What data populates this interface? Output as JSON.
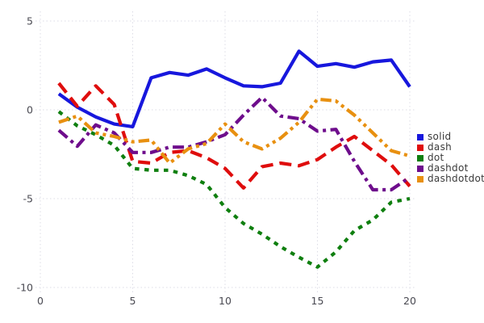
{
  "chart_data": {
    "type": "line",
    "title": "",
    "xlabel": "",
    "ylabel": "",
    "x": [
      1,
      2,
      3,
      4,
      5,
      6,
      7,
      8,
      9,
      10,
      11,
      12,
      13,
      14,
      15,
      16,
      17,
      18,
      19,
      20
    ],
    "series": [
      {
        "name": "solid",
        "color": "#1717dd",
        "dash": "solid",
        "values": [
          0.9,
          0.15,
          -0.4,
          -0.8,
          -0.95,
          1.8,
          2.1,
          1.95,
          2.3,
          1.8,
          1.35,
          1.3,
          1.5,
          3.3,
          2.45,
          2.6,
          2.4,
          2.7,
          2.8,
          1.3
        ]
      },
      {
        "name": "dash",
        "color": "#df0d0d",
        "dash": "dash",
        "values": [
          1.5,
          0.2,
          1.35,
          0.3,
          -2.9,
          -3.0,
          -2.4,
          -2.3,
          -2.7,
          -3.3,
          -4.4,
          -3.2,
          -3.0,
          -3.15,
          -2.8,
          -2.1,
          -1.5,
          -2.3,
          -3.1,
          -4.3
        ]
      },
      {
        "name": "dot",
        "color": "#0f7f0f",
        "dash": "dot",
        "values": [
          -0.1,
          -0.9,
          -1.4,
          -2.0,
          -3.3,
          -3.4,
          -3.4,
          -3.7,
          -4.2,
          -5.5,
          -6.4,
          -7.0,
          -7.7,
          -8.3,
          -8.85,
          -8.0,
          -6.8,
          -6.2,
          -5.2,
          -5.0
        ]
      },
      {
        "name": "dashdot",
        "color": "#6e0d8c",
        "dash": "dashdot",
        "values": [
          -1.15,
          -2.05,
          -0.85,
          -1.3,
          -2.4,
          -2.4,
          -2.1,
          -2.1,
          -1.8,
          -1.4,
          -0.3,
          0.7,
          -0.35,
          -0.5,
          -1.2,
          -1.1,
          -2.9,
          -4.5,
          -4.5,
          -3.8
        ]
      },
      {
        "name": "dashdotdot",
        "color": "#e89010",
        "dash": "dashdotdot",
        "values": [
          -0.7,
          -0.35,
          -1.3,
          -1.5,
          -1.8,
          -1.7,
          -3.0,
          -2.2,
          -1.9,
          -0.8,
          -1.8,
          -2.2,
          -1.6,
          -0.7,
          0.6,
          0.5,
          -0.3,
          -1.3,
          -2.3,
          -2.6
        ]
      }
    ],
    "x_ticks": [
      0,
      5,
      10,
      15,
      20
    ],
    "y_ticks": [
      5,
      0,
      -5,
      -10
    ],
    "xlim": [
      -0.3,
      20.4
    ],
    "ylim": [
      -10.3,
      5.5
    ],
    "grid": true,
    "grid_color": "#dcdce6",
    "legend_position": "right"
  }
}
